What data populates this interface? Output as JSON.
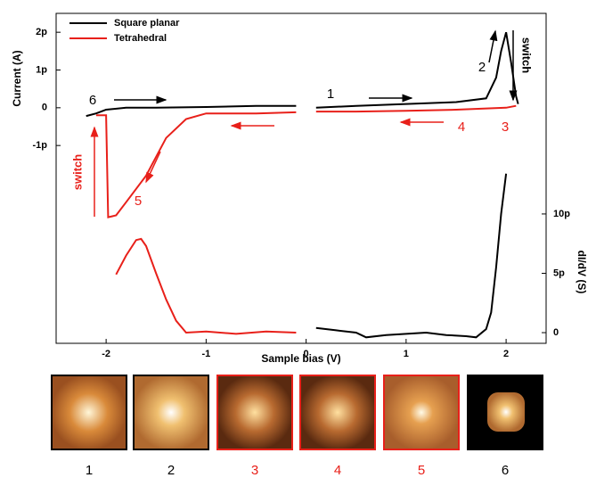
{
  "chart_data": {
    "type": "line",
    "xlabel": "Sample bias (V)",
    "ylabel": "Current (A)",
    "y2label": "dI/dV (S)",
    "xlim": [
      -2.5,
      2.4
    ],
    "xticks": [
      -2,
      -1,
      0,
      1,
      2
    ],
    "ylim": [
      -6.24e-12,
      2.5e-12
    ],
    "yticks": [
      {
        "value": -1e-12,
        "label": "-1p"
      },
      0,
      {
        "value": 1e-12,
        "label": "1p"
      },
      {
        "value": 2e-12,
        "label": "2p"
      }
    ],
    "y2lim": [
      -9e-13,
      2.69e-11
    ],
    "y2ticks": [
      0,
      {
        "value": 5e-12,
        "label": "5p"
      },
      {
        "value": 1e-11,
        "label": "10p"
      }
    ],
    "series": [
      {
        "name": "Square planar",
        "color": "#000000",
        "x": [
          -2.2,
          -2.1,
          -2.0,
          -1.8,
          -1.5,
          -1.0,
          -0.5,
          -0.1,
          null,
          0.1,
          0.5,
          1.0,
          1.5,
          1.8,
          1.9,
          1.95,
          2.0,
          2.05,
          2.1,
          2.12
        ],
        "values": [
          -2.2e-13,
          -1.5e-13,
          -5e-14,
          0,
          0,
          2e-14,
          5e-14,
          5e-14,
          null,
          0,
          5e-14,
          1e-13,
          1.5e-13,
          2.5e-13,
          8e-13,
          1.5e-12,
          2e-12,
          1.2e-12,
          3e-13,
          1e-13
        ]
      },
      {
        "name": "Tetrahedral",
        "color": "#e8201a",
        "x": [
          -2.1,
          -2.0,
          -1.98,
          -1.9,
          -1.8,
          -1.6,
          -1.4,
          -1.2,
          -1.0,
          -0.5,
          -0.1,
          null,
          0.1,
          0.5,
          1.0,
          1.5,
          2.0,
          2.1
        ],
        "values": [
          -2e-13,
          -2e-13,
          -2.9e-12,
          -2.85e-12,
          -2.5e-12,
          -1.8e-12,
          -8e-13,
          -3e-13,
          -1.5e-13,
          -1.5e-13,
          -1.2e-13,
          null,
          -1e-13,
          -1e-13,
          -8e-14,
          -5e-14,
          0,
          5e-14
        ]
      },
      {
        "color": "#e8201a",
        "axis": "y2",
        "x": [
          -1.9,
          -1.8,
          -1.7,
          -1.65,
          -1.6,
          -1.5,
          -1.4,
          -1.3,
          -1.2,
          -1.0,
          -0.7,
          -0.4,
          -0.1
        ],
        "values": [
          4.9e-12,
          6.5e-12,
          7.8e-12,
          7.9e-12,
          7.3e-12,
          5e-12,
          2.8e-12,
          1e-12,
          0,
          1e-13,
          -1e-13,
          1e-13,
          0
        ]
      },
      {
        "color": "#000000",
        "axis": "y2",
        "x": [
          0.1,
          0.3,
          0.5,
          0.6,
          0.8,
          1.0,
          1.2,
          1.4,
          1.6,
          1.7,
          1.8,
          1.85,
          1.9,
          1.95,
          2.0
        ],
        "values": [
          4e-13,
          2e-13,
          0,
          -4e-13,
          -2e-13,
          -1e-13,
          0,
          -2e-13,
          -3e-13,
          -4e-13,
          3e-13,
          1.7e-12,
          5.5e-12,
          1e-11,
          1.34e-11
        ]
      }
    ],
    "annotations": [
      {
        "text": "6",
        "color": "#000000"
      },
      {
        "text": "1",
        "color": "#000000"
      },
      {
        "text": "2",
        "color": "#000000"
      },
      {
        "text": "switch",
        "color": "#000000"
      },
      {
        "text": "3",
        "color": "#e8201a"
      },
      {
        "text": "4",
        "color": "#e8201a"
      },
      {
        "text": "5",
        "color": "#e8201a"
      },
      {
        "text": "switch",
        "color": "#e8201a"
      }
    ],
    "panels": [
      {
        "label": "1",
        "color": "#000000",
        "border": "#000000"
      },
      {
        "label": "2",
        "color": "#000000",
        "border": "#000000"
      },
      {
        "label": "3",
        "color": "#e8201a",
        "border": "#e8201a"
      },
      {
        "label": "4",
        "color": "#e8201a",
        "border": "#e8201a"
      },
      {
        "label": "5",
        "color": "#e8201a",
        "border": "#e8201a"
      },
      {
        "label": "6",
        "color": "#000000",
        "border": "#000000"
      }
    ]
  }
}
